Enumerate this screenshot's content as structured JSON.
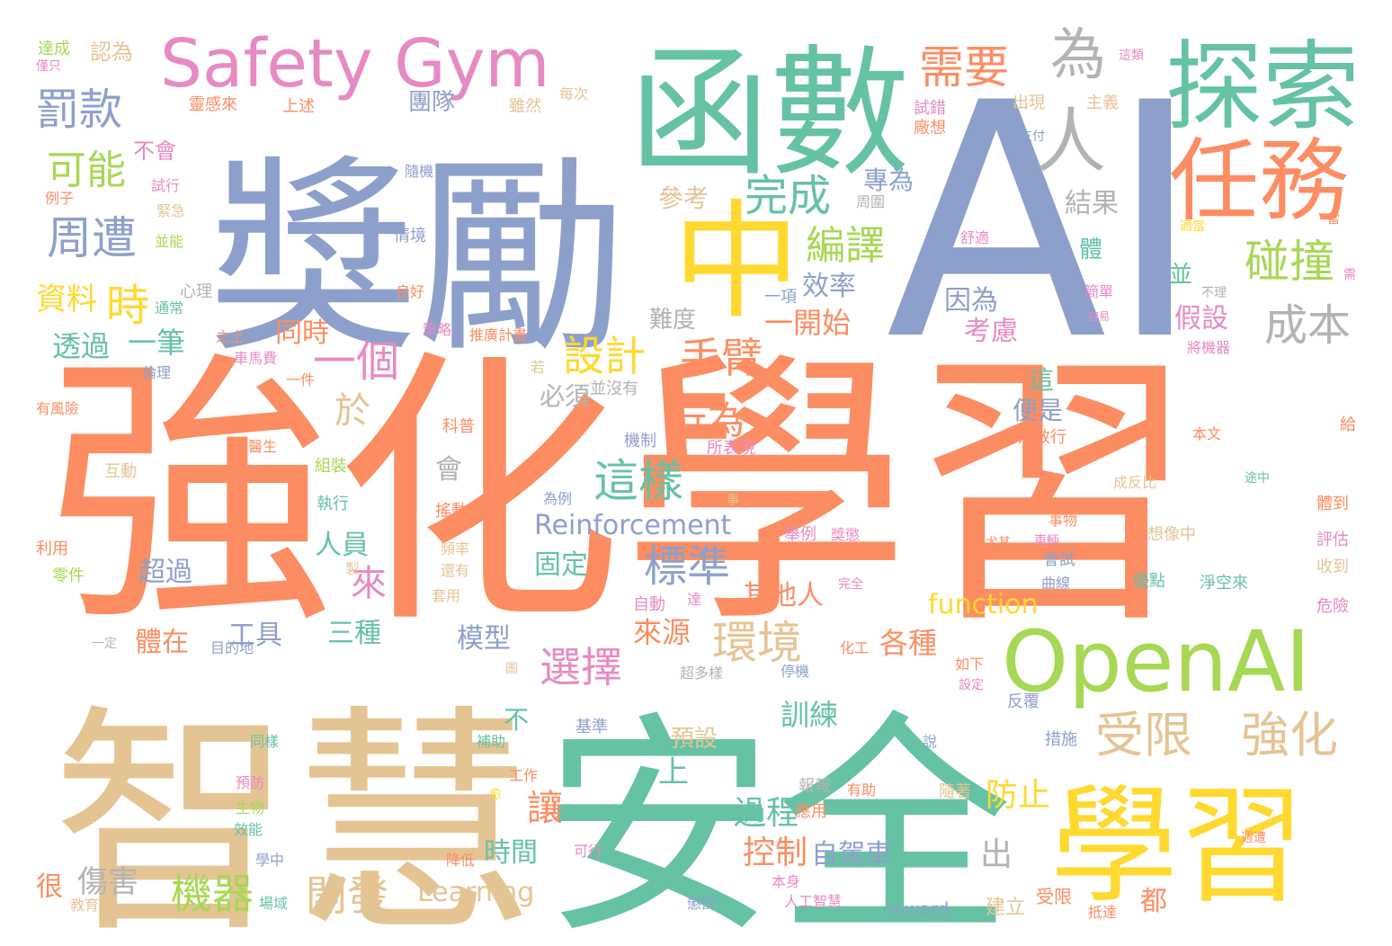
{
  "palette": {
    "orange": "#fc8d62",
    "green": "#66c2a5",
    "blue": "#8da0cb",
    "pink": "#e78ac3",
    "lime": "#a6d854",
    "yellow": "#ffd92f",
    "tan": "#e5c494",
    "gray": "#b3b3b3"
  },
  "words": [
    "強化學習",
    "AI",
    "獎勵",
    "安全",
    "智慧",
    "函數",
    "中",
    "探索",
    "學習",
    "OpenAI",
    "Safety Gym",
    "任務",
    "人",
    "需要",
    "為",
    "罰款",
    "完成",
    "周遭",
    "可能",
    "碰撞",
    "編譯",
    "時",
    "資料",
    "一個",
    "設計",
    "手臂",
    "成本",
    "環境",
    "選擇",
    "受限",
    "強化",
    "這樣",
    "標準",
    "行為",
    "機器",
    "開發",
    "控制",
    "自駕車",
    "過程",
    "防止",
    "Reinforcement",
    "Learning",
    "function",
    "reward",
    "傷害",
    "很",
    "來",
    "於",
    "讓",
    "出",
    "上",
    "不",
    "會",
    "透過",
    "一筆",
    "同時",
    "考慮",
    "假設",
    "因為",
    "並",
    "結果",
    "體",
    "效率",
    "一開始",
    "難度",
    "參考",
    "專為",
    "三種",
    "工具",
    "人員",
    "超過",
    "固定",
    "其他人",
    "各種",
    "來源",
    "模型",
    "體在",
    "預設",
    "訓練",
    "時間",
    "必須",
    "便是",
    "這",
    "都",
    "建立",
    "受限",
    "團隊",
    "不會",
    "心理",
    "通常",
    "達成",
    "認為",
    "靈感來",
    "上述",
    "雖然",
    "每次",
    "出現",
    "主義",
    "試錯",
    "廠想",
    "支付",
    "隨機",
    "試行",
    "緊急",
    "並能",
    "情境",
    "良好",
    "策略",
    "推廣計畫",
    "之上",
    "車馬費",
    "一件",
    "倫理",
    "有風險",
    "若",
    "並沒有",
    "機制",
    "所表現",
    "無效行",
    "科普",
    "醫生",
    "互動",
    "組裝",
    "執行",
    "為例",
    "搖動",
    "頻率",
    "還有",
    "利用",
    "零件",
    "製",
    "套用",
    "舉例",
    "獎懲",
    "自動",
    "達",
    "完全",
    "曲線",
    "會試",
    "尤其",
    "優點",
    "淨空來",
    "想像中",
    "成反比",
    "途中",
    "本文",
    "給",
    "事物",
    "車輛",
    "評估",
    "收到",
    "危險",
    "體到",
    "事",
    "如下",
    "設定",
    "反覆",
    "措施",
    "說",
    "有助",
    "隨著",
    "報報",
    "應用",
    "工作",
    "補助",
    "基準",
    "停機",
    "化工",
    "圖",
    "超多樣",
    "目的地",
    "一定",
    "同樣",
    "預防",
    "生物",
    "效能",
    "學中",
    "場域",
    "教育部",
    "降低",
    "可行",
    "本身",
    "懲罰",
    "人工智慧",
    "抵達",
    "週遭",
    "這類",
    "舒適",
    "適當",
    "當",
    "需",
    "將機器",
    "簡單",
    "容易",
    "不理",
    "一項",
    "周圍",
    "例子",
    "僅只",
    "愈"
  ]
}
